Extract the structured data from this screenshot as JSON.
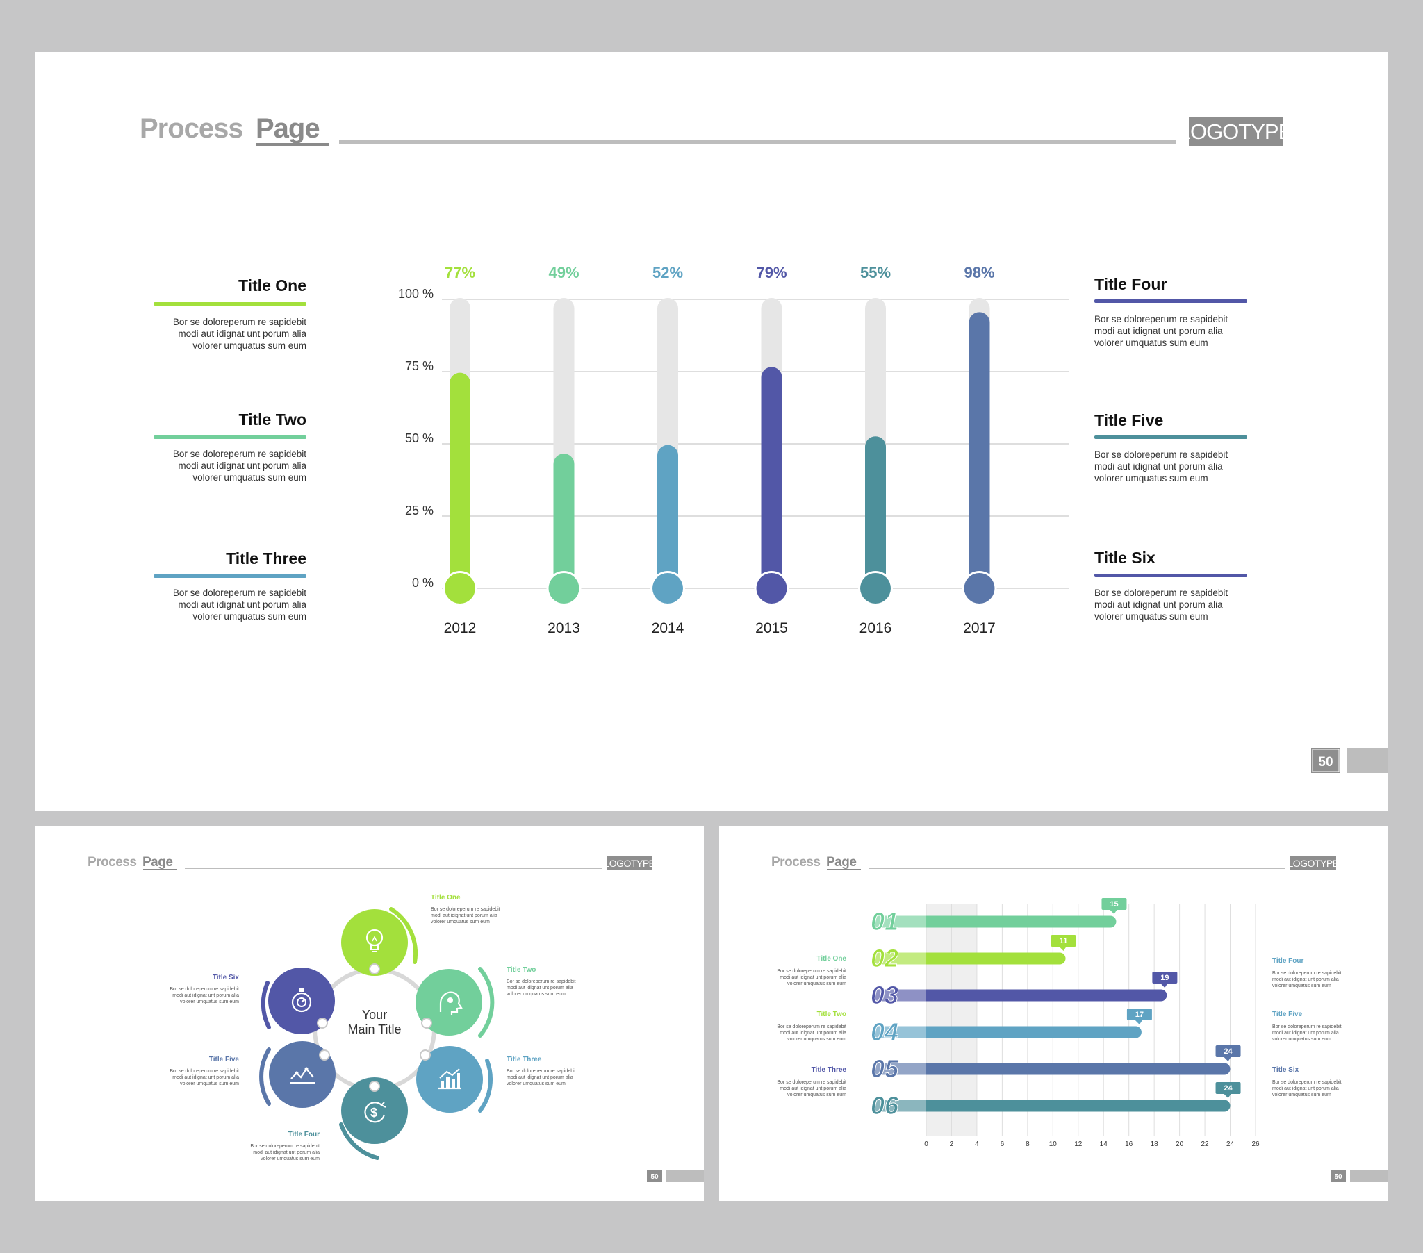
{
  "colors": {
    "lime": "#a3e03c",
    "mint": "#72cf9b",
    "sky": "#5fa3c3",
    "indigo": "#5257a7",
    "teal": "#4d909b",
    "slate": "#5a76a9",
    "track": "#e6e6e6",
    "brand_gray": "#9d9d9d"
  },
  "main_slide": {
    "header": {
      "title_light": "Process",
      "title_bold": "Page",
      "logo": "LOGOTYPE"
    },
    "page_number": "50",
    "left_items": [
      {
        "title": "Title One",
        "color": "#a3e03c",
        "lines": [
          "Bor se doloreperum re sapidebit",
          "modi aut idignat unt porum alia",
          "volorer umquatus sum eum"
        ]
      },
      {
        "title": "Title Two",
        "color": "#72cf9b",
        "lines": [
          "Bor se doloreperum re sapidebit",
          "modi aut idignat unt porum alia",
          "volorer umquatus sum eum"
        ]
      },
      {
        "title": "Title Three",
        "color": "#5fa3c3",
        "lines": [
          "Bor se doloreperum re sapidebit",
          "modi aut idignat unt porum alia",
          "volorer umquatus sum eum"
        ]
      }
    ],
    "right_items": [
      {
        "title": "Title Four",
        "color": "#5257a7",
        "lines": [
          "Bor se doloreperum re sapidebit",
          "modi aut idignat unt porum alia",
          "volorer umquatus sum eum"
        ]
      },
      {
        "title": "Title Five",
        "color": "#4d909b",
        "lines": [
          "Bor se doloreperum re sapidebit",
          "modi aut idignat unt porum alia",
          "volorer umquatus sum eum"
        ]
      },
      {
        "title": "Title Six",
        "color": "#5257a7",
        "lines": [
          "Bor se doloreperum re sapidebit",
          "modi aut idignat unt porum alia",
          "volorer umquatus sum eum"
        ]
      }
    ]
  },
  "cycle_slide": {
    "header": {
      "title_light": "Process",
      "title_bold": "Page",
      "logo": "LOGOTYPE"
    },
    "page_number": "50",
    "center_line1": "Your",
    "center_line2": "Main Title",
    "nodes": [
      {
        "title": "Title One",
        "icon": "lightbulb-icon",
        "color": "#a3e03c",
        "lines": [
          "Bor se doloreperum re sapidebit",
          "modi aut idignat unt porum alia",
          "volorer umquatus sum eum"
        ]
      },
      {
        "title": "Title Two",
        "icon": "gears-head-icon",
        "color": "#72cf9b",
        "lines": [
          "Bor se doloreperum re sapidebit",
          "modi aut idignat unt porum alia",
          "volorer umquatus sum eum"
        ]
      },
      {
        "title": "Title Three",
        "icon": "bar-chart-icon",
        "color": "#5fa3c3",
        "lines": [
          "Bor se doloreperum re sapidebit",
          "modi aut idignat unt porum alia",
          "volorer umquatus sum eum"
        ]
      },
      {
        "title": "Title Four",
        "icon": "dollar-refresh-icon",
        "color": "#4d909b",
        "lines": [
          "Bor se doloreperum re sapidebit",
          "modi aut idignat unt porum alia",
          "volorer umquatus sum eum"
        ]
      },
      {
        "title": "Title Five",
        "icon": "line-chart-icon",
        "color": "#5a76a9",
        "lines": [
          "Bor se doloreperum re sapidebit",
          "modi aut idignat unt porum alia",
          "volorer umquatus sum eum"
        ]
      },
      {
        "title": "Title Six",
        "icon": "stopwatch-icon",
        "color": "#5257a7",
        "lines": [
          "Bor se doloreperum re sapidebit",
          "modi aut idignat unt porum alia",
          "volorer umquatus sum eum"
        ]
      }
    ]
  },
  "hbar_slide": {
    "header": {
      "title_light": "Process",
      "title_bold": "Page",
      "logo": "LOGOTYPE"
    },
    "page_number": "50",
    "left_items": [
      {
        "title": "Title One",
        "color": "#72cf9b",
        "lines": [
          "Bor se doloreperum re sapidebit",
          "modi aut idignat unt porum alia",
          "volorer umquatus sum eum"
        ]
      },
      {
        "title": "Title Two",
        "color": "#a3e03c",
        "lines": [
          "Bor se doloreperum re sapidebit",
          "modi aut idignat unt porum alia",
          "volorer umquatus sum eum"
        ]
      },
      {
        "title": "Title Three",
        "color": "#5257a7",
        "lines": [
          "Bor se doloreperum re sapidebit",
          "modi aut idignat unt porum alia",
          "volorer umquatus sum eum"
        ]
      }
    ],
    "right_items": [
      {
        "title": "Title Four",
        "color": "#5fa3c3",
        "lines": [
          "Bor se doloreperum re sapidebit",
          "modi aut idignat unt porum alia",
          "volorer umquatus sum eum"
        ]
      },
      {
        "title": "Title Five",
        "color": "#5fa3c3",
        "lines": [
          "Bor se doloreperum re sapidebit",
          "modi aut idignat unt porum alia",
          "volorer umquatus sum eum"
        ]
      },
      {
        "title": "Title Six",
        "color": "#5a76a9",
        "lines": [
          "Bor se doloreperum re sapidebit",
          "modi aut idignat unt porum alia",
          "volorer umquatus sum eum"
        ]
      }
    ]
  },
  "chart_data": [
    {
      "type": "bar",
      "categories": [
        "2012",
        "2013",
        "2014",
        "2015",
        "2016",
        "2017"
      ],
      "values": [
        77,
        49,
        52,
        79,
        55,
        98
      ],
      "value_labels": [
        "77%",
        "49%",
        "52%",
        "79%",
        "55%",
        "98%"
      ],
      "colors": [
        "#a3e03c",
        "#72cf9b",
        "#5fa3c3",
        "#5257a7",
        "#4d909b",
        "#5a76a9"
      ],
      "ylim": [
        0,
        100
      ],
      "yticks": [
        "0 %",
        "25 %",
        "50 %",
        "75 %",
        "100 %"
      ],
      "grid": true
    },
    {
      "type": "bar",
      "orientation": "horizontal",
      "categories": [
        "01",
        "02",
        "03",
        "04",
        "05",
        "06"
      ],
      "values": [
        15,
        11,
        19,
        17,
        24,
        24
      ],
      "value_labels": [
        "15",
        "11",
        "19",
        "17",
        "24",
        "24"
      ],
      "colors": [
        "#72cf9b",
        "#a3e03c",
        "#5257a7",
        "#5fa3c3",
        "#5a76a9",
        "#4d909b"
      ],
      "xlim": [
        0,
        26
      ],
      "xticks": [
        "0",
        "2",
        "4",
        "6",
        "8",
        "10",
        "12",
        "14",
        "16",
        "18",
        "20",
        "22",
        "24",
        "26"
      ],
      "grid": true
    }
  ]
}
